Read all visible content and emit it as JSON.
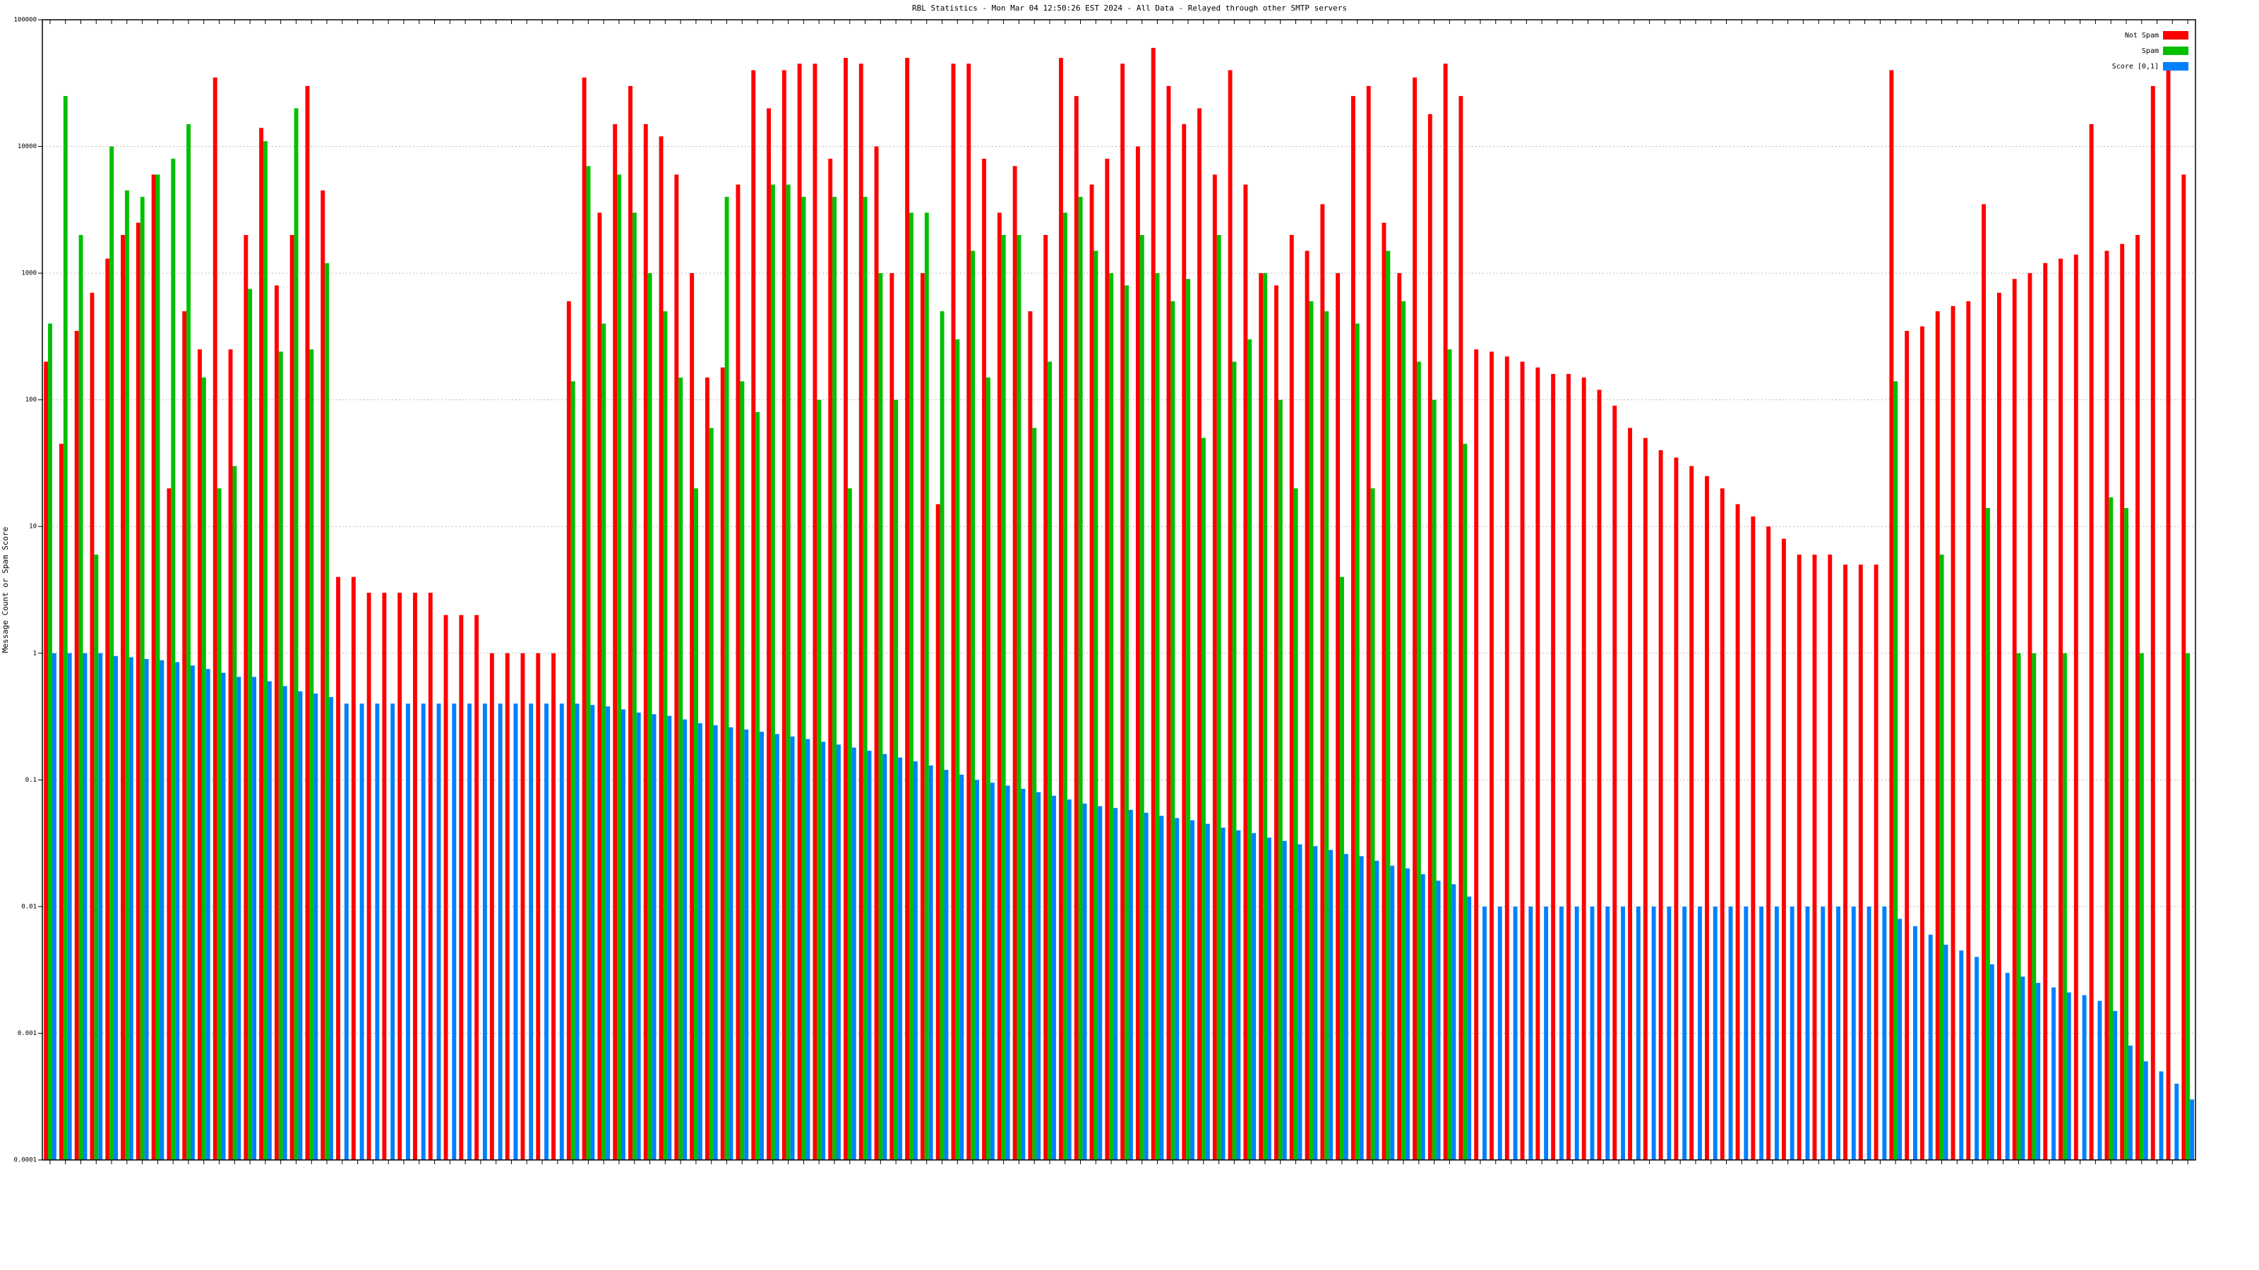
{
  "chart_data": {
    "type": "bar",
    "title": "RBL Statistics - Mon Mar 04 12:50:26 EST 2024 - All Data - Relayed through other SMTP servers",
    "y_label": "Message Count or Spam Score",
    "log_scale": true,
    "grid": true,
    "legend": "top-right",
    "ylim": [
      0.0001,
      100000
    ],
    "yticks": [
      0.0001,
      0.001,
      0.01,
      0.1,
      1,
      10,
      100,
      1000,
      10000,
      100000
    ],
    "categories": [
      null,
      null,
      null,
      null,
      null,
      null,
      null,
      null,
      null,
      null,
      null,
      null,
      null,
      null,
      null,
      null,
      null,
      null,
      null,
      null,
      null,
      null,
      null,
      null,
      null,
      null,
      null,
      null,
      null,
      null,
      null,
      null,
      null,
      null,
      null,
      null,
      null,
      null,
      null,
      null,
      null,
      null,
      null,
      null,
      null,
      null,
      null,
      null,
      null,
      null,
      null,
      null,
      null,
      null,
      null,
      null,
      null,
      null,
      null,
      null,
      null,
      null,
      null,
      null,
      null,
      null,
      null,
      null,
      null,
      null,
      null,
      null,
      null,
      null,
      null,
      null,
      null,
      null,
      null,
      null,
      null,
      null,
      null,
      null,
      null,
      null,
      null,
      null,
      null,
      null,
      null,
      null,
      null,
      null,
      null,
      null,
      null,
      null,
      null,
      null,
      null,
      null,
      null,
      null,
      null,
      null,
      null,
      null,
      null,
      null,
      null,
      null,
      null,
      null,
      null,
      null,
      null,
      null,
      null,
      null,
      null,
      null,
      null,
      null,
      null,
      null,
      null,
      null,
      null,
      null,
      null,
      null,
      null,
      null,
      null,
      null,
      null,
      null,
      null,
      null
    ],
    "series": [
      {
        "name": "Not Spam",
        "color": "#ff0000",
        "values": [
          200,
          45,
          350,
          700,
          1300,
          2000,
          2500,
          6000,
          20,
          500,
          250,
          35000,
          250,
          2000,
          14000,
          800,
          2000,
          30000,
          4500,
          4,
          4,
          3,
          3,
          3,
          3,
          3,
          2,
          2,
          2,
          1,
          1,
          1,
          1,
          1,
          600,
          35000,
          3000,
          15000,
          30000,
          15000,
          12000,
          6000,
          1000,
          150,
          180,
          5000,
          40000,
          20000,
          40000,
          45000,
          45000,
          8000,
          50000,
          45000,
          10000,
          1000,
          50000,
          1000,
          15,
          45000,
          45000,
          8000,
          3000,
          7000,
          500,
          2000,
          50000,
          25000,
          5000,
          8000,
          45000,
          10000,
          60000,
          30000,
          15000,
          20000,
          6000,
          40000,
          5000,
          1000,
          800,
          2000,
          1500,
          3500,
          1000,
          25000,
          30000,
          2500,
          1000,
          35000,
          18000,
          45000,
          25000,
          250,
          240,
          220,
          200,
          180,
          160,
          160,
          150,
          120,
          90,
          60,
          50,
          40,
          35,
          30,
          25,
          20,
          15,
          12,
          10,
          8,
          6,
          6,
          6,
          5,
          5,
          5,
          40000,
          350,
          380,
          500,
          550,
          600,
          3500,
          700,
          900,
          1000,
          1200,
          1300,
          1400,
          15000,
          1500,
          1700,
          2000,
          30000,
          40000,
          6000
        ]
      },
      {
        "name": "Spam",
        "color": "#00c000",
        "values": [
          400,
          25000,
          2000,
          6,
          10000,
          4500,
          4000,
          6000,
          8000,
          15000,
          150,
          20,
          30,
          750,
          11000,
          240,
          20000,
          250,
          1200,
          null,
          null,
          null,
          null,
          null,
          null,
          null,
          null,
          null,
          null,
          null,
          null,
          null,
          null,
          null,
          140,
          7000,
          400,
          6000,
          3000,
          1000,
          500,
          150,
          20,
          60,
          4000,
          140,
          80,
          5000,
          5000,
          4000,
          100,
          4000,
          20,
          4000,
          1000,
          100,
          3000,
          3000,
          500,
          300,
          1500,
          150,
          2000,
          2000,
          60,
          200,
          3000,
          4000,
          1500,
          1000,
          800,
          2000,
          1000,
          600,
          900,
          50,
          2000,
          200,
          300,
          1000,
          100,
          20,
          600,
          500,
          4,
          400,
          20,
          1500,
          600,
          200,
          100,
          250,
          45,
          null,
          null,
          null,
          null,
          null,
          null,
          null,
          null,
          null,
          null,
          null,
          null,
          null,
          null,
          null,
          null,
          null,
          null,
          null,
          null,
          null,
          null,
          null,
          null,
          null,
          null,
          null,
          140,
          null,
          null,
          6,
          null,
          null,
          14,
          null,
          1,
          1,
          null,
          1,
          null,
          null,
          17,
          14,
          1,
          null,
          null,
          1
        ]
      },
      {
        "name": "Score [0,1]",
        "color": "#0080ff",
        "values": [
          1,
          1,
          1,
          1,
          0.95,
          0.93,
          0.9,
          0.88,
          0.85,
          0.8,
          0.75,
          0.7,
          0.65,
          0.65,
          0.6,
          0.55,
          0.5,
          0.48,
          0.45,
          0.4,
          0.4,
          0.4,
          0.4,
          0.4,
          0.4,
          0.4,
          0.4,
          0.4,
          0.4,
          0.4,
          0.4,
          0.4,
          0.4,
          0.4,
          0.4,
          0.39,
          0.38,
          0.36,
          0.34,
          0.33,
          0.32,
          0.3,
          0.28,
          0.27,
          0.26,
          0.25,
          0.24,
          0.23,
          0.22,
          0.21,
          0.2,
          0.19,
          0.18,
          0.17,
          0.16,
          0.15,
          0.14,
          0.13,
          0.12,
          0.11,
          0.1,
          0.095,
          0.09,
          0.085,
          0.08,
          0.075,
          0.07,
          0.065,
          0.062,
          0.06,
          0.058,
          0.055,
          0.052,
          0.05,
          0.048,
          0.045,
          0.042,
          0.04,
          0.038,
          0.035,
          0.033,
          0.031,
          0.03,
          0.028,
          0.026,
          0.025,
          0.023,
          0.021,
          0.02,
          0.018,
          0.016,
          0.015,
          0.012,
          0.01,
          0.01,
          0.01,
          0.01,
          0.01,
          0.01,
          0.01,
          0.01,
          0.01,
          0.01,
          0.01,
          0.01,
          0.01,
          0.01,
          0.01,
          0.01,
          0.01,
          0.01,
          0.01,
          0.01,
          0.01,
          0.01,
          0.01,
          0.01,
          0.01,
          0.01,
          0.01,
          0.008,
          0.007,
          0.006,
          0.005,
          0.0045,
          0.004,
          0.0035,
          0.003,
          0.0028,
          0.0025,
          0.0023,
          0.0021,
          0.002,
          0.0018,
          0.0015,
          0.0008,
          0.0006,
          0.0005,
          0.0004,
          0.0003
        ]
      }
    ]
  }
}
